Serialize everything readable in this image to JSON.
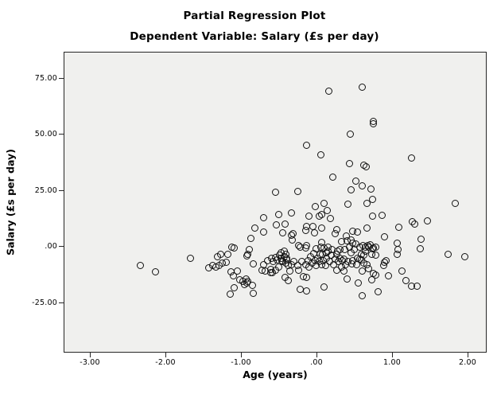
{
  "chart_data": {
    "type": "scatter",
    "title": "Partial Regression Plot",
    "subtitle": "Dependent Variable: Salary (£s per day)",
    "xlabel": "Age (years)",
    "ylabel": "Salary (£s per day)",
    "xlim": [
      -3.35,
      2.25
    ],
    "ylim": [
      -47.4,
      86.6
    ],
    "grid": false,
    "legend": null,
    "marker": "open-circle",
    "x_ticks": {
      "values": [
        -3,
        -2,
        -1,
        0,
        1,
        2
      ],
      "labels": [
        "-3.00",
        "-2.00",
        "-1.00",
        ".00",
        "1.00",
        "2.00"
      ]
    },
    "y_ticks": {
      "values": [
        75,
        50,
        25,
        0,
        -25
      ],
      "labels": [
        "75.00",
        "50.00",
        "25.00",
        ".00",
        "-25.00"
      ]
    },
    "points": [
      [
        0.59,
        71.3
      ],
      [
        0.15,
        69.5
      ],
      [
        0.74,
        56.1
      ],
      [
        0.74,
        54.7
      ],
      [
        0.43,
        50.4
      ],
      [
        -0.14,
        45.3
      ],
      [
        0.04,
        41.0
      ],
      [
        1.24,
        39.8
      ],
      [
        0.42,
        37.3
      ],
      [
        0.61,
        36.3
      ],
      [
        0.64,
        35.9
      ],
      [
        0.2,
        31.2
      ],
      [
        0.51,
        29.4
      ],
      [
        0.59,
        27.3
      ],
      [
        0.71,
        25.9
      ],
      [
        0.44,
        25.3
      ],
      [
        -0.26,
        24.6
      ],
      [
        -0.56,
        24.3
      ],
      [
        0.73,
        21.1
      ],
      [
        0.09,
        19.6
      ],
      [
        1.82,
        19.4
      ],
      [
        0.66,
        19.4
      ],
      [
        0.4,
        19.0
      ],
      [
        -0.03,
        18.1
      ],
      [
        0.13,
        16.4
      ],
      [
        -0.35,
        15.2
      ],
      [
        -0.51,
        14.6
      ],
      [
        0.05,
        14.3
      ],
      [
        0.85,
        14.0
      ],
      [
        -0.11,
        13.8
      ],
      [
        0.73,
        13.8
      ],
      [
        0.02,
        13.7
      ],
      [
        -0.71,
        13.1
      ],
      [
        0.17,
        12.8
      ],
      [
        1.45,
        11.7
      ],
      [
        1.25,
        11.1
      ],
      [
        1.29,
        10.3
      ],
      [
        -0.43,
        10.3
      ],
      [
        -0.54,
        9.7
      ],
      [
        -0.14,
        9.3
      ],
      [
        -0.06,
        9.1
      ],
      [
        1.08,
        8.7
      ],
      [
        -0.83,
        8.5
      ],
      [
        0.65,
        8.5
      ],
      [
        0.05,
        8.4
      ],
      [
        0.26,
        7.9
      ],
      [
        -0.16,
        7.3
      ],
      [
        0.47,
        7.0
      ],
      [
        -0.71,
        6.7
      ],
      [
        0.53,
        6.7
      ],
      [
        -0.46,
        6.4
      ],
      [
        -0.04,
        6.2
      ],
      [
        0.23,
        6.1
      ],
      [
        -0.32,
        6.0
      ],
      [
        -0.35,
        5.2
      ],
      [
        0.38,
        4.8
      ],
      [
        0.89,
        4.4
      ],
      [
        -0.88,
        3.8
      ],
      [
        1.37,
        3.4
      ],
      [
        -0.33,
        3.2
      ],
      [
        0.44,
        3.2
      ],
      [
        0.39,
        2.8
      ],
      [
        0.32,
        2.5
      ],
      [
        0.06,
        2.2
      ],
      [
        0.47,
        1.6
      ],
      [
        1.05,
        1.6
      ],
      [
        0.51,
        1.3
      ],
      [
        0.7,
        1.1
      ],
      [
        -0.25,
        0.8
      ],
      [
        0.6,
        0.8
      ],
      [
        -0.15,
        0.5
      ],
      [
        0.67,
        0.5
      ],
      [
        -1.13,
        0.1
      ],
      [
        -0.23,
        0.1
      ],
      [
        0.56,
        0.1
      ],
      [
        0.77,
        0.1
      ],
      [
        0.14,
        -0.1
      ],
      [
        0.04,
        -0.1
      ],
      [
        0.42,
        -0.1
      ],
      [
        0.68,
        -0.1
      ],
      [
        0.63,
        -0.1
      ],
      [
        -1.1,
        -0.4
      ],
      [
        -0.16,
        -0.5
      ],
      [
        0.09,
        -0.5
      ],
      [
        -0.02,
        -0.7
      ],
      [
        0.74,
        -0.4
      ],
      [
        0.73,
        -0.7
      ],
      [
        1.36,
        -0.7
      ],
      [
        -0.9,
        -1.3
      ],
      [
        0.19,
        -1.3
      ],
      [
        0.3,
        -1.3
      ],
      [
        0.49,
        -1.3
      ],
      [
        1.07,
        -1.3
      ],
      [
        0.36,
        -1.3
      ],
      [
        0.14,
        -1.7
      ],
      [
        0.27,
        -1.7
      ],
      [
        -0.44,
        -1.9
      ],
      [
        0.63,
        -1.9
      ],
      [
        0.44,
        -2.5
      ],
      [
        -0.48,
        -2.5
      ],
      [
        -0.05,
        -2.8
      ],
      [
        0.12,
        -2.7
      ],
      [
        0.07,
        -3.1
      ],
      [
        0.03,
        -3.1
      ],
      [
        0.26,
        -3.1
      ],
      [
        0.58,
        -3.1
      ],
      [
        0.72,
        -3.1
      ],
      [
        1.73,
        -3.1
      ],
      [
        -0.42,
        -3.4
      ],
      [
        -1.28,
        -3.4
      ],
      [
        -1.19,
        -3.4
      ],
      [
        1.05,
        -3.4
      ],
      [
        -0.92,
        -3.4
      ],
      [
        -0.5,
        -3.7
      ],
      [
        0.18,
        -3.7
      ],
      [
        0.61,
        -3.7
      ],
      [
        0.77,
        -3.7
      ],
      [
        -0.93,
        -4.0
      ],
      [
        -0.09,
        -4.3
      ],
      [
        -1.32,
        -4.4
      ],
      [
        -0.44,
        -4.4
      ],
      [
        1.95,
        -4.4
      ],
      [
        -0.56,
        -4.6
      ],
      [
        -1.68,
        -4.9
      ],
      [
        0.0,
        -4.9
      ],
      [
        0.12,
        -4.9
      ],
      [
        0.3,
        -4.9
      ],
      [
        -0.48,
        -4.9
      ],
      [
        0.53,
        -4.9
      ],
      [
        -0.41,
        -5.2
      ],
      [
        -0.61,
        -5.2
      ],
      [
        0.23,
        -5.5
      ],
      [
        0.35,
        -5.5
      ],
      [
        0.56,
        -5.5
      ],
      [
        -0.53,
        -5.8
      ],
      [
        -0.41,
        -5.8
      ],
      [
        0.58,
        -5.8
      ],
      [
        -0.66,
        -6.0
      ],
      [
        -0.47,
        -6.0
      ],
      [
        -0.12,
        -6.0
      ],
      [
        -0.03,
        -6.0
      ],
      [
        0.08,
        -6.0
      ],
      [
        0.33,
        -6.0
      ],
      [
        0.47,
        -6.0
      ],
      [
        0.91,
        -6.0
      ],
      [
        -0.59,
        -6.4
      ],
      [
        -0.46,
        -6.4
      ],
      [
        -0.31,
        -6.6
      ],
      [
        -0.21,
        -6.6
      ],
      [
        0.02,
        -6.6
      ],
      [
        0.16,
        -6.6
      ],
      [
        0.28,
        -6.6
      ],
      [
        0.4,
        -6.6
      ],
      [
        -1.21,
        -6.7
      ],
      [
        0.89,
        -6.7
      ],
      [
        -1.26,
        -7.0
      ],
      [
        -0.42,
        -7.2
      ],
      [
        -0.07,
        -7.2
      ],
      [
        0.61,
        -7.2
      ],
      [
        -0.85,
        -7.6
      ],
      [
        0.45,
        -7.6
      ],
      [
        -0.34,
        -7.8
      ],
      [
        -0.16,
        -7.8
      ],
      [
        0.05,
        -7.8
      ],
      [
        0.21,
        -7.8
      ],
      [
        0.37,
        -7.8
      ],
      [
        0.65,
        -7.8
      ],
      [
        -0.71,
        -7.9
      ],
      [
        0.52,
        -7.9
      ],
      [
        -1.3,
        -8.2
      ],
      [
        -2.34,
        -8.4
      ],
      [
        -1.39,
        -8.4
      ],
      [
        -0.39,
        -8.4
      ],
      [
        -0.26,
        -8.4
      ],
      [
        -0.02,
        -8.4
      ],
      [
        0.11,
        -8.4
      ],
      [
        0.88,
        -8.4
      ],
      [
        -1.34,
        -8.8
      ],
      [
        -0.51,
        -9.0
      ],
      [
        -0.11,
        -9.0
      ],
      [
        0.32,
        -9.0
      ],
      [
        -1.44,
        -9.4
      ],
      [
        0.68,
        -9.6
      ],
      [
        -0.62,
        -9.9
      ],
      [
        -0.56,
        -10.2
      ],
      [
        -0.25,
        -10.2
      ],
      [
        0.25,
        -10.2
      ],
      [
        -0.73,
        -10.5
      ],
      [
        -0.69,
        -10.8
      ],
      [
        -1.06,
        -10.8
      ],
      [
        -0.37,
        -10.8
      ],
      [
        0.35,
        -10.8
      ],
      [
        0.59,
        -10.8
      ],
      [
        1.12,
        -10.8
      ],
      [
        -2.15,
        -11.1
      ],
      [
        -1.15,
        -11.1
      ],
      [
        -0.62,
        -11.3
      ],
      [
        -0.6,
        -11.5
      ],
      [
        0.74,
        -11.9
      ],
      [
        0.77,
        -12.5
      ],
      [
        -1.11,
        -12.7
      ],
      [
        0.94,
        -12.9
      ],
      [
        -0.19,
        -13.1
      ],
      [
        -0.43,
        -13.7
      ],
      [
        -0.14,
        -13.7
      ],
      [
        -0.95,
        -14.3
      ],
      [
        0.39,
        -14.3
      ],
      [
        -1.03,
        -14.7
      ],
      [
        0.72,
        -14.7
      ],
      [
        -0.39,
        -14.9
      ],
      [
        1.17,
        -14.9
      ],
      [
        -0.99,
        -15.2
      ],
      [
        -0.92,
        -15.2
      ],
      [
        -0.93,
        -15.9
      ],
      [
        0.54,
        -16.2
      ],
      [
        -0.97,
        -16.7
      ],
      [
        -0.86,
        -17.0
      ],
      [
        1.24,
        -17.3
      ],
      [
        1.32,
        -17.3
      ],
      [
        0.09,
        -17.9
      ],
      [
        -1.1,
        -18.2
      ],
      [
        -0.23,
        -19.0
      ],
      [
        -0.14,
        -19.4
      ],
      [
        0.8,
        -20.0
      ],
      [
        -0.85,
        -20.6
      ],
      [
        -1.16,
        -20.9
      ],
      [
        0.59,
        -21.8
      ]
    ]
  },
  "colors": {
    "page_bg": "#ffffff",
    "plot_bg": "#f0f0ee",
    "frame": "#262626",
    "marker_stroke": "#121212",
    "text": "#000000"
  }
}
